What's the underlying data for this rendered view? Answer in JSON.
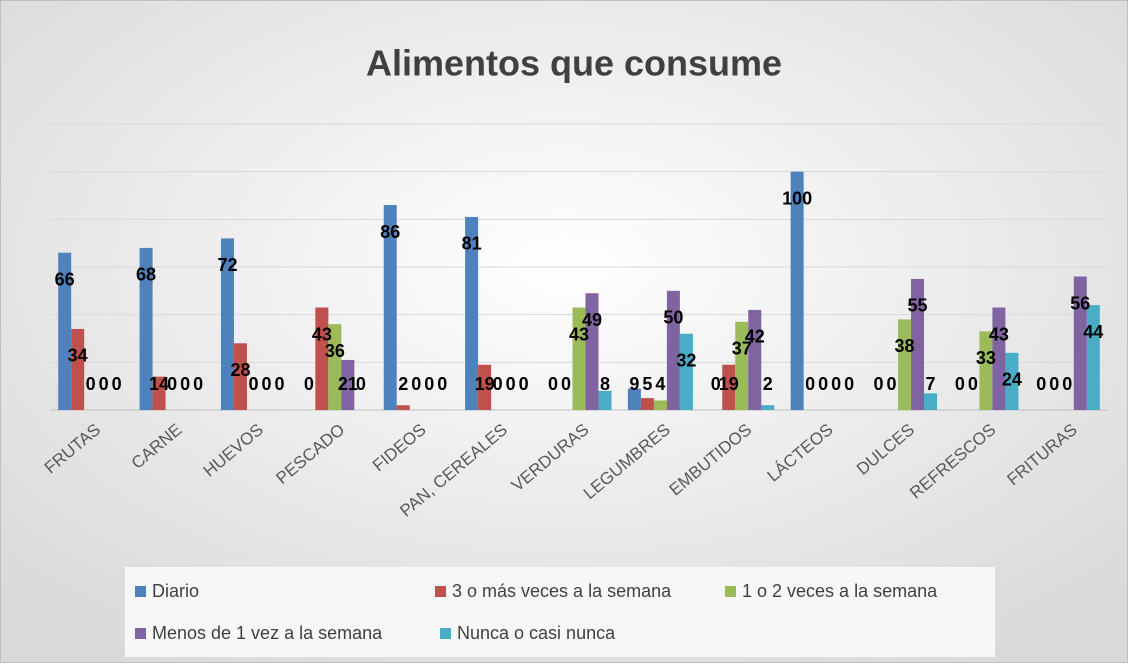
{
  "chart_data": {
    "type": "bar",
    "title": "Alimentos que consume",
    "categories": [
      "FRUTAS",
      "CARNE",
      "HUEVOS",
      "PESCADO",
      "FIDEOS",
      "PAN, CEREALES",
      "VERDURAS",
      "LEGUMBRES",
      "EMBUTIDOS",
      "LÁCTEOS",
      "DULCES",
      "REFRESCOS",
      "FRITURAS"
    ],
    "series": [
      {
        "name": "Diario",
        "color": "#4f81bd",
        "values": [
          66,
          68,
          72,
          0,
          86,
          81,
          0,
          9,
          0,
          100,
          0,
          0,
          0
        ]
      },
      {
        "name": "3 o más veces a la semana",
        "color": "#c0504d",
        "values": [
          34,
          14,
          28,
          43,
          2,
          19,
          0,
          5,
          19,
          0,
          0,
          0,
          0
        ]
      },
      {
        "name": "1 o 2 veces a la semana",
        "color": "#9bbb59",
        "values": [
          0,
          0,
          0,
          36,
          0,
          0,
          43,
          4,
          37,
          0,
          38,
          33,
          0
        ]
      },
      {
        "name": "Menos de 1 vez a la semana",
        "color": "#8064a2",
        "values": [
          0,
          0,
          0,
          21,
          0,
          0,
          49,
          50,
          42,
          0,
          55,
          43,
          56
        ]
      },
      {
        "name": "Nunca o casi nunca",
        "color": "#4bacc6",
        "values": [
          0,
          0,
          0,
          0,
          0,
          0,
          8,
          32,
          2,
          0,
          7,
          24,
          44
        ]
      }
    ],
    "ylim": [
      0,
      120
    ],
    "yticks": [
      0,
      20,
      40,
      60,
      80,
      100,
      120
    ],
    "grid": true,
    "legend": "bottom"
  }
}
